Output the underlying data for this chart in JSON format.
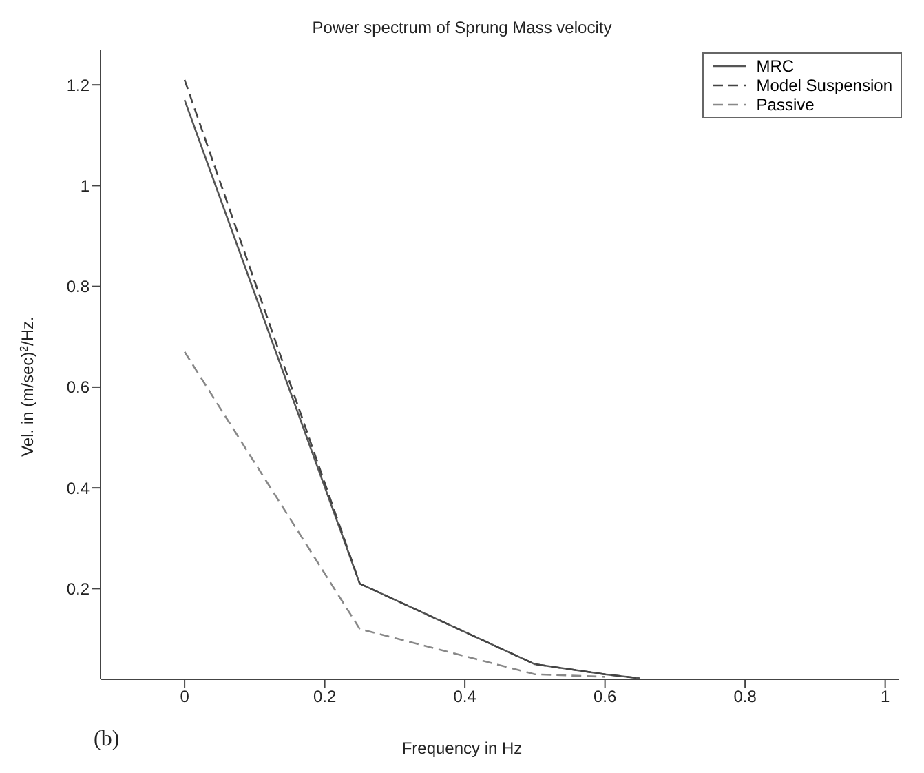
{
  "chart_data": {
    "type": "line",
    "title": "Power spectrum of Sprung Mass velocity",
    "xlabel": "Frequency in Hz",
    "ylabel": "Vel. in (m/sec)$^{2}$/Hz.",
    "annotations": [
      "(b)"
    ],
    "x": [
      0,
      0.25,
      0.5,
      0.6,
      0.65
    ],
    "series": [
      {
        "name": "MRC",
        "color": "#555555",
        "line_style": "solid",
        "values": [
          1.17,
          0.21,
          0.05,
          0.03,
          0.022
        ]
      },
      {
        "name": "Model Suspension",
        "color": "#444444",
        "line_style": "dashed",
        "values": [
          1.21,
          0.21,
          0.05,
          0.03,
          0.022
        ]
      },
      {
        "name": "Passive",
        "color": "#888888",
        "line_style": "dashed",
        "values": [
          0.67,
          0.12,
          0.03,
          0.025,
          null
        ]
      }
    ],
    "xlim": [
      -0.12,
      1.02
    ],
    "ylim": [
      0.02,
      1.27
    ],
    "xticks": [
      0,
      0.2,
      0.4,
      0.6,
      0.8,
      1
    ],
    "yticks": [
      0.2,
      0.4,
      0.6,
      0.8,
      1,
      1.2
    ],
    "grid": false,
    "legend": "top right",
    "marker": "none"
  }
}
